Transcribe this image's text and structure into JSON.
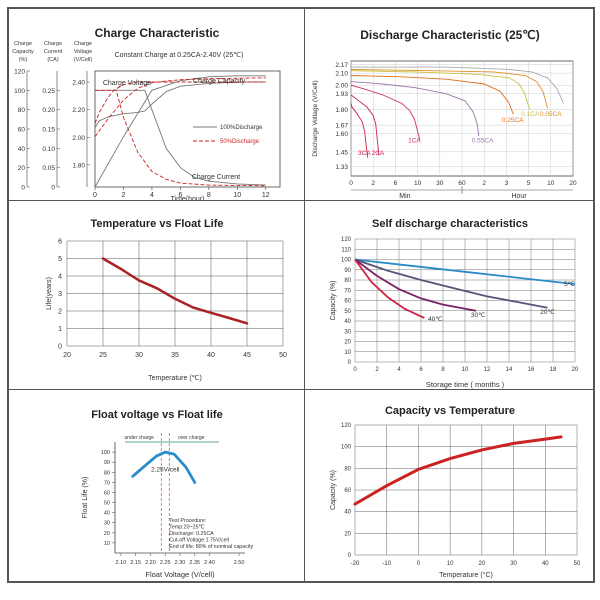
{
  "chart_data": [
    {
      "type": "line",
      "title": "Charge Characteristic",
      "subtitle": "Constant Charge at 0.25CA-2.40V  (25℃)",
      "xlabel": "Time(hour)",
      "x_ticks": [
        "0",
        "2",
        "4",
        "6",
        "8",
        "10",
        "12"
      ],
      "axes": [
        {
          "label_lines": [
            "Charge",
            "Capacity",
            "(%)"
          ],
          "ticks": [
            "120",
            "100",
            "80",
            "60",
            "40",
            "20",
            "0"
          ]
        },
        {
          "label_lines": [
            "Charge",
            "Current",
            "(CA)"
          ],
          "ticks": [
            "0.25",
            "0.20",
            "0.15",
            "0.10",
            "0.05",
            "0"
          ]
        },
        {
          "label_lines": [
            "Charge",
            "Voltage",
            "(V/Cell)"
          ],
          "ticks": [
            "2.40",
            "2.20",
            "2.00",
            "1.80"
          ]
        }
      ],
      "annotations": [
        "Charge Voltage",
        "Charge Capacity",
        "Charge Current"
      ],
      "legend": [
        "100%Discharge",
        "50%Discharge"
      ],
      "legend_position": "right",
      "colors": {
        "100": "#777777",
        "50": "#cc2222"
      },
      "series": [
        {
          "name": "100%Discharge",
          "quantity": "voltage",
          "x": [
            0,
            0.3,
            1,
            2,
            3,
            3.5,
            4,
            5,
            6,
            7,
            8,
            10,
            12
          ],
          "y": [
            2.07,
            2.12,
            2.15,
            2.17,
            2.18,
            2.19,
            2.24,
            2.33,
            2.37,
            2.38,
            2.39,
            2.4,
            2.4
          ]
        },
        {
          "name": "50%Discharge",
          "quantity": "voltage",
          "x": [
            0,
            0.3,
            0.8,
            1.3,
            2,
            2.5,
            3,
            4,
            6,
            12
          ],
          "y": [
            2.1,
            2.18,
            2.27,
            2.34,
            2.38,
            2.39,
            2.4,
            2.4,
            2.4,
            2.4
          ]
        },
        {
          "name": "100%Discharge",
          "quantity": "current",
          "x": [
            0,
            3.5,
            4,
            5,
            6,
            7,
            8,
            10,
            12
          ],
          "y": [
            0.25,
            0.25,
            0.2,
            0.1,
            0.05,
            0.025,
            0.015,
            0.008,
            0.005
          ]
        },
        {
          "name": "50%Discharge",
          "quantity": "current",
          "x": [
            0,
            1.5,
            2,
            3,
            4,
            5,
            6,
            8,
            12
          ],
          "y": [
            0.25,
            0.25,
            0.18,
            0.09,
            0.04,
            0.02,
            0.01,
            0.005,
            0.003
          ]
        },
        {
          "name": "100%Discharge",
          "quantity": "capacity",
          "x": [
            0,
            2,
            4,
            6,
            8,
            10,
            12
          ],
          "y": [
            0,
            52,
            100,
            110,
            114,
            115,
            115
          ]
        },
        {
          "name": "50%Discharge",
          "quantity": "capacity",
          "x": [
            0,
            1,
            2,
            3,
            4,
            6,
            8,
            12
          ],
          "y": [
            52,
            72,
            90,
            102,
            108,
            111,
            112,
            113
          ]
        }
      ]
    },
    {
      "type": "line",
      "title": "Discharge Characteristic (25℃)",
      "ylabel": "Discharge Voltage (V/Cell)",
      "x_ticks": [
        "0",
        "2",
        "6",
        "10",
        "30",
        "60",
        "2",
        "3",
        "5",
        "10",
        "20"
      ],
      "x_groups": [
        "Min",
        "Hour"
      ],
      "y_ticks": [
        "2.17",
        "2.10",
        "2.00",
        "1.93",
        "1.80",
        "1.67",
        "1.60",
        "1.45",
        "1.33"
      ],
      "colors": [
        "#cc2244",
        "#cc2255",
        "#cc3355",
        "#9977aa",
        "#e07020",
        "#c8c040",
        "#e09020",
        "#aaaaaa"
      ],
      "series": [
        {
          "name": "3CA",
          "x": [
            0,
            0.3,
            1.5,
            2.5,
            3.5,
            4.3,
            4.8,
            5.3
          ],
          "y": [
            1.85,
            1.82,
            1.78,
            1.74,
            1.7,
            1.62,
            1.5,
            1.4
          ]
        },
        {
          "name": "2CA",
          "x": [
            0,
            2,
            5,
            7,
            7.8,
            8.3,
            8.8
          ],
          "y": [
            1.92,
            1.88,
            1.82,
            1.75,
            1.68,
            1.55,
            1.42
          ]
        },
        {
          "name": "1CA",
          "x": [
            0,
            4,
            10,
            16,
            18.5,
            20,
            21,
            21.7
          ],
          "y": [
            2.0,
            1.97,
            1.92,
            1.85,
            1.79,
            1.72,
            1.62,
            1.55
          ]
        },
        {
          "name": "0.55CA",
          "x": [
            0,
            10,
            20,
            30,
            36,
            38.5,
            39.8,
            40.3
          ],
          "y": [
            2.03,
            2.01,
            1.98,
            1.93,
            1.87,
            1.78,
            1.68,
            1.58
          ]
        },
        {
          "name": "0.25CA",
          "x": [
            0,
            15,
            30,
            42,
            47,
            49.7,
            51.2
          ],
          "y": [
            2.08,
            2.07,
            2.05,
            2.01,
            1.95,
            1.86,
            1.76
          ]
        },
        {
          "name": "0.1CA",
          "x": [
            0,
            20,
            40,
            50,
            53,
            54.8,
            56.3
          ],
          "y": [
            2.12,
            2.11,
            2.09,
            2.06,
            2.01,
            1.93,
            1.8
          ]
        },
        {
          "name": "0.05CA",
          "x": [
            0,
            25,
            45,
            55,
            58.5,
            60.5,
            62
          ],
          "y": [
            2.13,
            2.12,
            2.11,
            2.08,
            2.03,
            1.95,
            1.81
          ]
        },
        {
          "name": "",
          "x": [
            0,
            30,
            50,
            57,
            62,
            65,
            67
          ],
          "y": [
            2.15,
            2.15,
            2.13,
            2.11,
            2.06,
            1.97,
            1.85
          ]
        }
      ]
    },
    {
      "type": "line",
      "title": "Temperature vs Float Life",
      "xlabel": "Temperature (℃)",
      "ylabel": "Life(years)",
      "x_ticks": [
        "20",
        "25",
        "30",
        "35",
        "40",
        "45",
        "50"
      ],
      "y_ticks": [
        "0",
        "1",
        "2",
        "3",
        "4",
        "5",
        "6"
      ],
      "xlim": [
        20,
        50
      ],
      "ylim": [
        0,
        6
      ],
      "color": "#aa2222",
      "series": [
        {
          "name": "",
          "x": [
            25,
            27.5,
            30,
            32.5,
            35,
            37.5,
            40,
            42.5,
            45
          ],
          "y": [
            5.0,
            4.4,
            3.75,
            3.3,
            2.7,
            2.2,
            1.9,
            1.6,
            1.3
          ]
        }
      ]
    },
    {
      "type": "line",
      "title": "Self discharge characteristics",
      "xlabel": "Storage time ( months )",
      "ylabel": "Capacity (%)",
      "x_ticks": [
        "0",
        "2",
        "4",
        "6",
        "8",
        "10",
        "12",
        "14",
        "16",
        "18",
        "20"
      ],
      "y_ticks": [
        "0",
        "10",
        "20",
        "30",
        "40",
        "50",
        "60",
        "70",
        "80",
        "90",
        "100",
        "110",
        "120"
      ],
      "xlim": [
        0,
        20
      ],
      "ylim": [
        0,
        120
      ],
      "grid": true,
      "series": [
        {
          "name": "5℃",
          "color": "#2a8cc8",
          "x": [
            0,
            5,
            10,
            15,
            20
          ],
          "y": [
            100,
            94,
            88,
            82,
            76
          ]
        },
        {
          "name": "20℃",
          "color": "#555577",
          "x": [
            0,
            3,
            6,
            9,
            12,
            15,
            17.5
          ],
          "y": [
            100,
            89,
            80,
            72,
            64,
            58,
            53
          ]
        },
        {
          "name": "30℃",
          "color": "#7a2266",
          "x": [
            0,
            2,
            4,
            6,
            8,
            10,
            11
          ],
          "y": [
            100,
            84,
            71,
            62,
            56,
            52,
            50
          ]
        },
        {
          "name": "40℃",
          "color": "#cc2244",
          "x": [
            0,
            1.5,
            3,
            4.5,
            6.3
          ],
          "y": [
            100,
            78,
            63,
            52,
            43
          ]
        }
      ]
    },
    {
      "type": "line",
      "title": "Float voltage vs Float life",
      "xlabel": "Float Voltage (V/cell)",
      "ylabel": "Float Life (%)",
      "x_ticks": [
        "2.10",
        "2.15",
        "2.20",
        "2.25",
        "2.30",
        "2.35",
        "2.40",
        "2.50"
      ],
      "y_ticks": [
        "100",
        "90",
        "80",
        "70",
        "60",
        "50",
        "40",
        "30",
        "20",
        "10"
      ],
      "region_labels": [
        "under charge",
        "over charge"
      ],
      "center_label": "2.25V/cell",
      "procedure": [
        "Test Procedure:",
        "Temp:20~25℃",
        "Discharge: 0.25CA",
        "Cut-off Voltage 1.75V/cell",
        "End of life: 80% of nominal capacity"
      ],
      "color": "#2a8cc8",
      "series": [
        {
          "name": "",
          "x": [
            2.14,
            2.18,
            2.22,
            2.25,
            2.28,
            2.32,
            2.35
          ],
          "y": [
            76,
            86,
            96,
            100,
            98,
            85,
            70
          ]
        }
      ]
    },
    {
      "type": "line",
      "title": "Capacity vs Temperature",
      "xlabel": "Temperature (°C)",
      "ylabel": "Capacity (%)",
      "x_ticks": [
        "-20",
        "-10",
        "0",
        "10",
        "20",
        "30",
        "40",
        "50"
      ],
      "y_ticks": [
        "0",
        "20",
        "40",
        "60",
        "80",
        "100",
        "120"
      ],
      "xlim": [
        -20,
        50
      ],
      "ylim": [
        0,
        120
      ],
      "grid": true,
      "color": "#cc2222",
      "series": [
        {
          "name": "",
          "x": [
            -20,
            -10,
            0,
            10,
            20,
            30,
            40,
            45
          ],
          "y": [
            47,
            64,
            79,
            89,
            97,
            103,
            107,
            109
          ]
        }
      ]
    }
  ]
}
